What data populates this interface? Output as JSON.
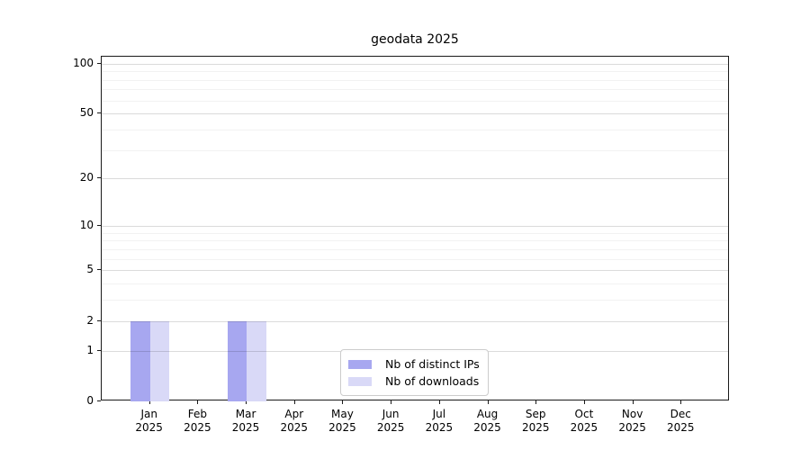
{
  "chart_data": {
    "type": "bar",
    "title": "geodata 2025",
    "categories": [
      "Jan",
      "Feb",
      "Mar",
      "Apr",
      "May",
      "Jun",
      "Jul",
      "Aug",
      "Sep",
      "Oct",
      "Nov",
      "Dec"
    ],
    "category_year_label": "2025",
    "series": [
      {
        "name": "Nb of distinct IPs",
        "color": "#a7a7f0",
        "values": [
          2,
          0,
          2,
          0,
          0,
          0,
          0,
          0,
          0,
          0,
          0,
          0
        ]
      },
      {
        "name": "Nb of downloads",
        "color": "#d9d9f7",
        "values": [
          2,
          0,
          2,
          0,
          0,
          0,
          0,
          0,
          0,
          0,
          0,
          0
        ]
      }
    ],
    "xlabel": "",
    "ylabel": "",
    "y_scale": "log1p",
    "y_major_ticks": [
      0,
      1,
      2,
      5,
      10,
      20,
      50,
      100
    ],
    "y_minor_gridlines": [
      3,
      4,
      6,
      7,
      8,
      9,
      30,
      40,
      60,
      70,
      80,
      90
    ],
    "ylim": [
      0,
      110
    ],
    "grid": "horizontal-major-and-minor",
    "legend_position": "lower center",
    "bar_group": "side-by-side"
  }
}
